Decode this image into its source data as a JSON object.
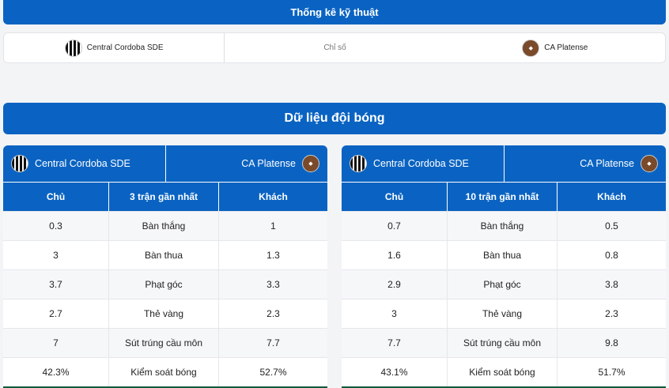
{
  "header": {
    "title": "Thống kê kỹ thuật"
  },
  "teams_bar": {
    "home": "Central Cordoba SDE",
    "mid": "Chỉ số",
    "away": "CA Platense"
  },
  "section": {
    "title": "Dữ liệu đội bóng"
  },
  "tables": [
    {
      "home": "Central Cordoba SDE",
      "away": "CA Platense",
      "columns": [
        "Chủ",
        "3 trận gần nhất",
        "Khách"
      ],
      "rows": [
        [
          "0.3",
          "Bàn thắng",
          "1"
        ],
        [
          "3",
          "Bàn thua",
          "1.3"
        ],
        [
          "3.7",
          "Phạt góc",
          "3.3"
        ],
        [
          "2.7",
          "Thẻ vàng",
          "2.3"
        ],
        [
          "7",
          "Sút trúng cầu môn",
          "7.7"
        ],
        [
          "42.3%",
          "Kiểm soát bóng",
          "52.7%"
        ]
      ]
    },
    {
      "home": "Central Cordoba SDE",
      "away": "CA Platense",
      "columns": [
        "Chủ",
        "10 trận gần nhất",
        "Khách"
      ],
      "rows": [
        [
          "0.7",
          "Bàn thắng",
          "0.5"
        ],
        [
          "1.6",
          "Bàn thua",
          "0.8"
        ],
        [
          "2.9",
          "Phạt góc",
          "3.8"
        ],
        [
          "3",
          "Thẻ vàng",
          "2.3"
        ],
        [
          "7.7",
          "Sút trúng cầu môn",
          "9.8"
        ],
        [
          "43.1%",
          "Kiểm soát bóng",
          "51.7%"
        ]
      ]
    }
  ],
  "colors": {
    "primary": "#0a63c2"
  }
}
